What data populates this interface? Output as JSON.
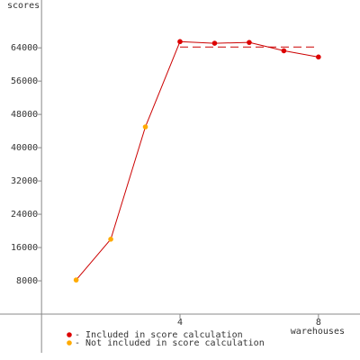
{
  "chart_data": {
    "type": "line",
    "y_label": "scores",
    "x_label": "warehouses",
    "series": [
      {
        "name": "- Included in score calculation",
        "color": "#dd0000",
        "x": [
          4,
          5,
          6,
          7,
          8
        ],
        "values": [
          65500,
          65100,
          65300,
          63300,
          61800
        ]
      },
      {
        "name": "- Not included in score calculation",
        "color": "#ffaa00",
        "x": [
          1,
          2,
          3
        ],
        "values": [
          8200,
          18000,
          45000
        ]
      }
    ],
    "line_color": "#cc0000",
    "score": 64200,
    "xlim": [
      -1.2,
      9.2
    ],
    "xticks": [
      4,
      8
    ],
    "ylim": [
      -9300,
      75500
    ],
    "yticks": [
      8000,
      16000,
      24000,
      32000,
      40000,
      48000,
      56000,
      64000
    ]
  }
}
